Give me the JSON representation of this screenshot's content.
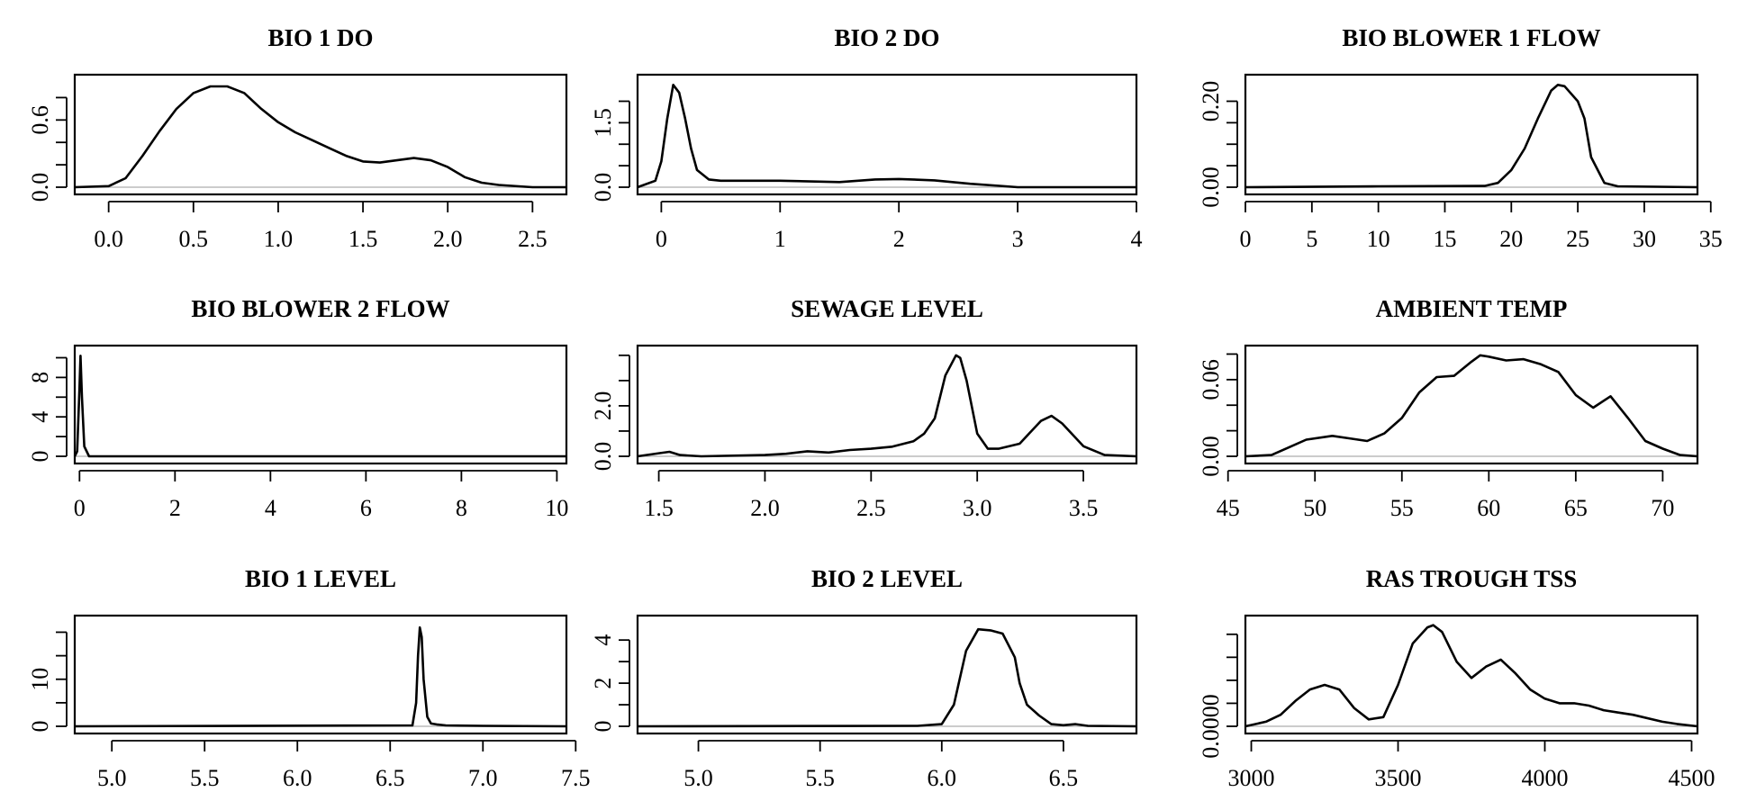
{
  "chart_data": [
    {
      "type": "line",
      "title": "BIO 1 DO",
      "xlim": [
        -0.2,
        2.7
      ],
      "ylim": [
        0,
        0.94
      ],
      "xticks": [
        0.0,
        0.5,
        1.0,
        1.5,
        2.0,
        2.5
      ],
      "xtick_labels": [
        "0.0",
        "0.5",
        "1.0",
        "1.5",
        "2.0",
        "2.5"
      ],
      "yticks": [
        0.0,
        0.2,
        0.4,
        0.6,
        0.8
      ],
      "ytick_labels": [
        "0.0",
        "",
        "",
        "0.6",
        ""
      ],
      "x": [
        -0.2,
        0.0,
        0.1,
        0.2,
        0.3,
        0.4,
        0.5,
        0.6,
        0.7,
        0.8,
        0.9,
        1.0,
        1.1,
        1.2,
        1.3,
        1.4,
        1.5,
        1.6,
        1.7,
        1.8,
        1.9,
        2.0,
        2.1,
        2.2,
        2.3,
        2.5,
        2.7
      ],
      "y": [
        0.0,
        0.01,
        0.08,
        0.28,
        0.5,
        0.7,
        0.84,
        0.9,
        0.9,
        0.84,
        0.7,
        0.58,
        0.49,
        0.42,
        0.35,
        0.28,
        0.23,
        0.22,
        0.24,
        0.26,
        0.24,
        0.18,
        0.09,
        0.04,
        0.02,
        0.0,
        0.0
      ]
    },
    {
      "type": "line",
      "title": "BIO 2 DO",
      "xlim": [
        -0.2,
        4.0
      ],
      "ylim": [
        0,
        2.45
      ],
      "xticks": [
        0,
        1,
        2,
        3,
        4
      ],
      "xtick_labels": [
        "0",
        "1",
        "2",
        "3",
        "4"
      ],
      "yticks": [
        0.0,
        0.5,
        1.0,
        1.5,
        2.0
      ],
      "ytick_labels": [
        "0.0",
        "",
        "",
        "1.5",
        ""
      ],
      "x": [
        -0.2,
        -0.05,
        0.0,
        0.05,
        0.1,
        0.15,
        0.2,
        0.25,
        0.3,
        0.4,
        0.5,
        0.6,
        1.0,
        1.5,
        1.8,
        2.0,
        2.3,
        2.6,
        2.9,
        3.0,
        3.5,
        4.0
      ],
      "y": [
        0.0,
        0.15,
        0.6,
        1.6,
        2.38,
        2.2,
        1.6,
        0.9,
        0.4,
        0.18,
        0.15,
        0.15,
        0.15,
        0.12,
        0.18,
        0.19,
        0.16,
        0.08,
        0.02,
        0.0,
        0.0,
        0.0
      ]
    },
    {
      "type": "line",
      "title": "BIO BLOWER 1 FLOW",
      "xlim": [
        0,
        34
      ],
      "ylim": [
        0,
        0.245
      ],
      "xticks": [
        0,
        5,
        10,
        15,
        20,
        25,
        30,
        35
      ],
      "xtick_labels": [
        "0",
        "5",
        "10",
        "15",
        "20",
        "25",
        "30",
        "35"
      ],
      "yticks": [
        0.0,
        0.05,
        0.1,
        0.15,
        0.2
      ],
      "ytick_labels": [
        "0.00",
        "",
        "",
        "",
        "0.20"
      ],
      "x": [
        0,
        10,
        18,
        19,
        20,
        21,
        22,
        23,
        23.5,
        24,
        25,
        25.5,
        26,
        27,
        28,
        34
      ],
      "y": [
        0.0,
        0.002,
        0.003,
        0.01,
        0.04,
        0.09,
        0.16,
        0.225,
        0.238,
        0.235,
        0.2,
        0.16,
        0.07,
        0.01,
        0.002,
        0.0
      ]
    },
    {
      "type": "line",
      "title": "BIO BLOWER 2 FLOW",
      "xlim": [
        -0.1,
        10.2
      ],
      "ylim": [
        0,
        10.5
      ],
      "xticks": [
        0,
        2,
        4,
        6,
        8,
        10
      ],
      "xtick_labels": [
        "0",
        "2",
        "4",
        "6",
        "8",
        "10"
      ],
      "yticks": [
        0,
        2,
        4,
        6,
        8,
        10
      ],
      "ytick_labels": [
        "0",
        "",
        "4",
        "",
        "8",
        ""
      ],
      "x": [
        -0.1,
        -0.05,
        0.0,
        0.02,
        0.05,
        0.1,
        0.2,
        10.2
      ],
      "y": [
        0.0,
        0.5,
        7.0,
        10.2,
        6.0,
        1.0,
        0.0,
        0.0
      ]
    },
    {
      "type": "line",
      "title": "SEWAGE LEVEL",
      "xlim": [
        1.4,
        3.75
      ],
      "ylim": [
        0,
        4.1
      ],
      "xticks": [
        1.5,
        2.0,
        2.5,
        3.0,
        3.5
      ],
      "xtick_labels": [
        "1.5",
        "2.0",
        "2.5",
        "3.0",
        "3.5"
      ],
      "yticks": [
        0.0,
        1.0,
        2.0,
        3.0,
        4.0
      ],
      "ytick_labels": [
        "0.0",
        "",
        "2.0",
        "",
        ""
      ],
      "x": [
        1.4,
        1.5,
        1.55,
        1.6,
        1.7,
        2.0,
        2.1,
        2.2,
        2.3,
        2.4,
        2.5,
        2.6,
        2.7,
        2.75,
        2.8,
        2.85,
        2.9,
        2.92,
        2.95,
        3.0,
        3.05,
        3.1,
        3.2,
        3.3,
        3.35,
        3.4,
        3.5,
        3.6,
        3.75
      ],
      "y": [
        0.0,
        0.12,
        0.18,
        0.05,
        0.0,
        0.05,
        0.1,
        0.2,
        0.15,
        0.25,
        0.3,
        0.38,
        0.6,
        0.9,
        1.5,
        3.2,
        4.0,
        3.9,
        3.0,
        0.9,
        0.3,
        0.3,
        0.5,
        1.4,
        1.6,
        1.3,
        0.4,
        0.05,
        0.0
      ]
    },
    {
      "type": "line",
      "title": "AMBIENT TEMP",
      "xlim": [
        46,
        72
      ],
      "ylim": [
        0,
        0.081
      ],
      "xticks": [
        45,
        50,
        55,
        60,
        65,
        70
      ],
      "xtick_labels": [
        "45",
        "50",
        "55",
        "60",
        "65",
        "70"
      ],
      "yticks": [
        0.0,
        0.02,
        0.04,
        0.06,
        0.08
      ],
      "ytick_labels": [
        "0.00",
        "",
        "",
        "0.06",
        ""
      ],
      "x": [
        46,
        47.5,
        48.5,
        49.5,
        51,
        52,
        53,
        54,
        55,
        56,
        57,
        58,
        59,
        59.5,
        60,
        61,
        62,
        63,
        64,
        65,
        66,
        67,
        68,
        69,
        70,
        71,
        72
      ],
      "y": [
        0.0,
        0.001,
        0.007,
        0.013,
        0.016,
        0.014,
        0.012,
        0.018,
        0.03,
        0.05,
        0.062,
        0.063,
        0.074,
        0.079,
        0.078,
        0.075,
        0.076,
        0.072,
        0.066,
        0.048,
        0.038,
        0.047,
        0.03,
        0.012,
        0.006,
        0.001,
        0.0
      ]
    },
    {
      "type": "line",
      "title": "BIO 1 LEVEL",
      "xlim": [
        4.8,
        7.45
      ],
      "ylim": [
        0,
        22
      ],
      "xticks": [
        5.0,
        5.5,
        6.0,
        6.5,
        7.0,
        7.5
      ],
      "xtick_labels": [
        "5.0",
        "5.5",
        "6.0",
        "6.5",
        "7.0",
        "7.5"
      ],
      "yticks": [
        0,
        5,
        10,
        15,
        20
      ],
      "ytick_labels": [
        "0",
        "",
        "10",
        "",
        ""
      ],
      "x": [
        4.8,
        6.62,
        6.64,
        6.65,
        6.66,
        6.67,
        6.68,
        6.7,
        6.72,
        6.75,
        6.8,
        7.0,
        7.45
      ],
      "y": [
        0.0,
        0.2,
        5.0,
        15.0,
        21.0,
        19.0,
        10.0,
        2.0,
        0.6,
        0.4,
        0.2,
        0.1,
        0.0
      ]
    },
    {
      "type": "line",
      "title": "BIO 2 LEVEL",
      "xlim": [
        4.75,
        6.8
      ],
      "ylim": [
        0,
        4.8
      ],
      "xticks": [
        5.0,
        5.5,
        6.0,
        6.5
      ],
      "xtick_labels": [
        "5.0",
        "5.5",
        "6.0",
        "6.5"
      ],
      "yticks": [
        0,
        1,
        2,
        3,
        4
      ],
      "ytick_labels": [
        "0",
        "",
        "2",
        "",
        "4"
      ],
      "x": [
        4.75,
        5.9,
        6.0,
        6.05,
        6.1,
        6.15,
        6.2,
        6.25,
        6.3,
        6.32,
        6.35,
        6.4,
        6.45,
        6.5,
        6.55,
        6.6,
        6.8
      ],
      "y": [
        0.0,
        0.02,
        0.1,
        1.0,
        3.5,
        4.5,
        4.45,
        4.3,
        3.2,
        2.0,
        1.0,
        0.5,
        0.1,
        0.05,
        0.1,
        0.02,
        0.0
      ]
    },
    {
      "type": "line",
      "title": "RAS TROUGH TSS",
      "xlim": [
        2980,
        4520
      ],
      "ylim": [
        0,
        0.0045
      ],
      "xticks": [
        3000,
        3500,
        4000,
        4500
      ],
      "xtick_labels": [
        "3000",
        "3500",
        "4000",
        "4500"
      ],
      "yticks": [
        0.0,
        0.001,
        0.002,
        0.003,
        0.004
      ],
      "ytick_labels": [
        "0.0000",
        "",
        "",
        "",
        ""
      ],
      "x": [
        2980,
        3050,
        3100,
        3150,
        3200,
        3250,
        3300,
        3350,
        3400,
        3450,
        3500,
        3550,
        3600,
        3620,
        3650,
        3700,
        3750,
        3800,
        3850,
        3900,
        3950,
        4000,
        4050,
        4100,
        4150,
        4200,
        4250,
        4300,
        4400,
        4450,
        4520
      ],
      "y": [
        0.0,
        0.0002,
        0.0005,
        0.0011,
        0.0016,
        0.0018,
        0.0016,
        0.0008,
        0.0003,
        0.0004,
        0.0018,
        0.0036,
        0.0043,
        0.0044,
        0.0041,
        0.0028,
        0.0021,
        0.0026,
        0.0029,
        0.0023,
        0.0016,
        0.0012,
        0.001,
        0.001,
        0.0009,
        0.0007,
        0.0006,
        0.0005,
        0.0002,
        0.0001,
        0.0
      ]
    }
  ]
}
